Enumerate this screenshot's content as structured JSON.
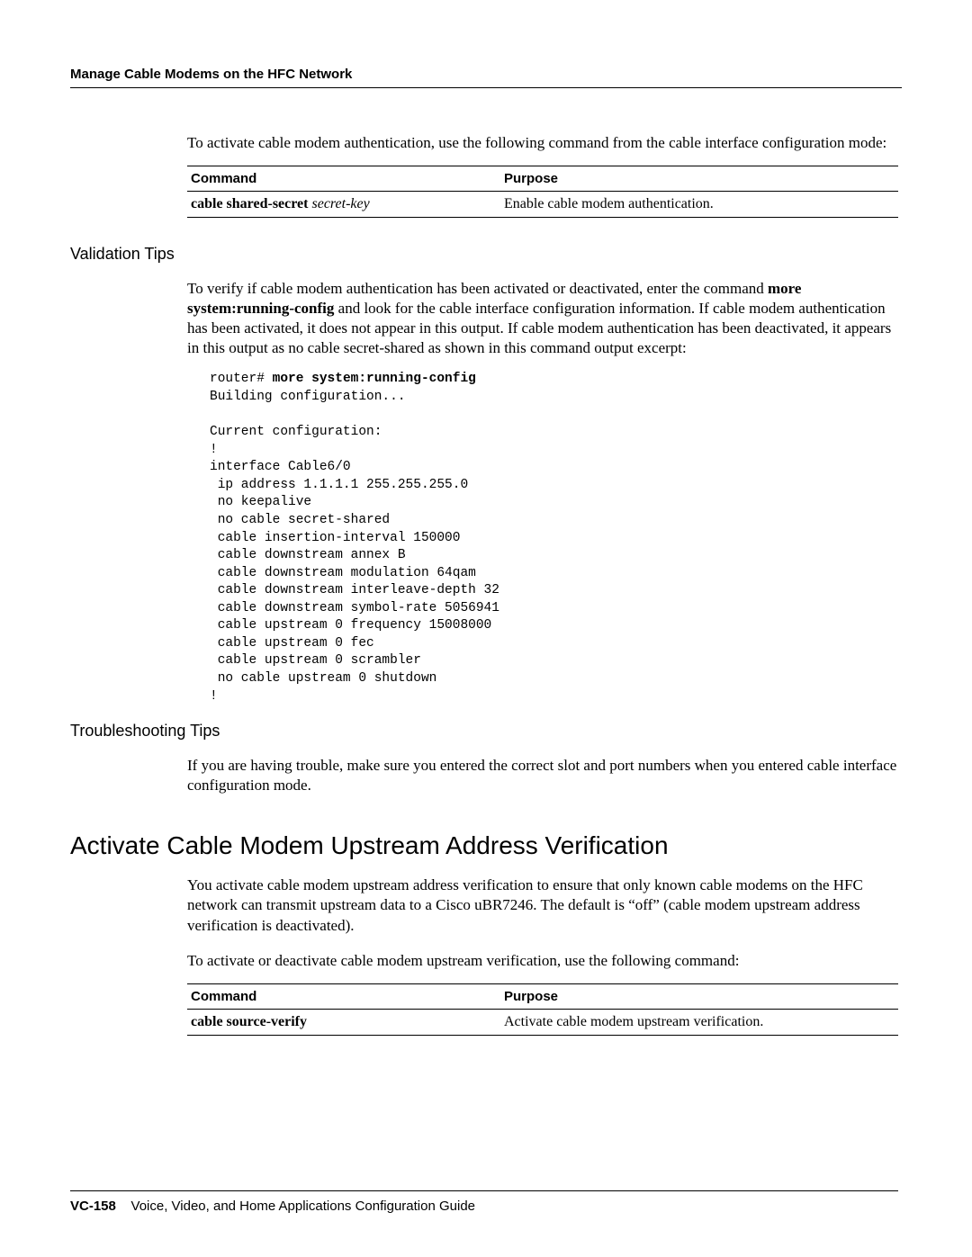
{
  "header": {
    "title": "Manage Cable Modems on the HFC Network"
  },
  "intro_para": "To activate cable modem authentication, use the following command from the cable interface configuration mode:",
  "table1": {
    "head_command": "Command",
    "head_purpose": "Purpose",
    "row_command_bold": "cable shared-secret",
    "row_command_italic": " secret-key",
    "row_purpose": "Enable cable modem authentication."
  },
  "validation": {
    "heading": "Validation Tips",
    "para_part1": "To verify if cable modem authentication has been activated or deactivated, enter the command ",
    "para_bold1": "more system:running-config",
    "para_part2": " and look for the cable interface configuration information. If cable modem authentication has been activated, it does not appear in this output. If cable modem authentication has been deactivated, it appears in this output as no cable secret-shared as shown in this command output excerpt:",
    "code_prompt": "router# ",
    "code_cmd": "more system:running-config",
    "code_body": "Building configuration...\n\nCurrent configuration:\n!\ninterface Cable6/0\n ip address 1.1.1.1 255.255.255.0\n no keepalive\n no cable secret-shared\n cable insertion-interval 150000\n cable downstream annex B\n cable downstream modulation 64qam\n cable downstream interleave-depth 32\n cable downstream symbol-rate 5056941\n cable upstream 0 frequency 15008000\n cable upstream 0 fec\n cable upstream 0 scrambler\n no cable upstream 0 shutdown\n!"
  },
  "troubleshoot": {
    "heading": "Troubleshooting Tips",
    "para": "If you are having trouble, make sure you entered the correct slot and port numbers when you entered cable interface configuration mode."
  },
  "activate": {
    "heading": "Activate Cable Modem Upstream Address Verification",
    "para1": "You activate cable modem upstream address verification to ensure that only known cable modems on the HFC network can transmit upstream data to a Cisco uBR7246. The default is “off” (cable modem upstream address verification is deactivated).",
    "para2": "To activate or deactivate cable modem upstream verification, use the following command:"
  },
  "table2": {
    "head_command": "Command",
    "head_purpose": "Purpose",
    "row_command_bold": "cable source-verify",
    "row_purpose": "Activate cable modem upstream verification."
  },
  "footer": {
    "page": "VC-158",
    "title": "Voice, Video, and Home Applications Configuration Guide"
  }
}
